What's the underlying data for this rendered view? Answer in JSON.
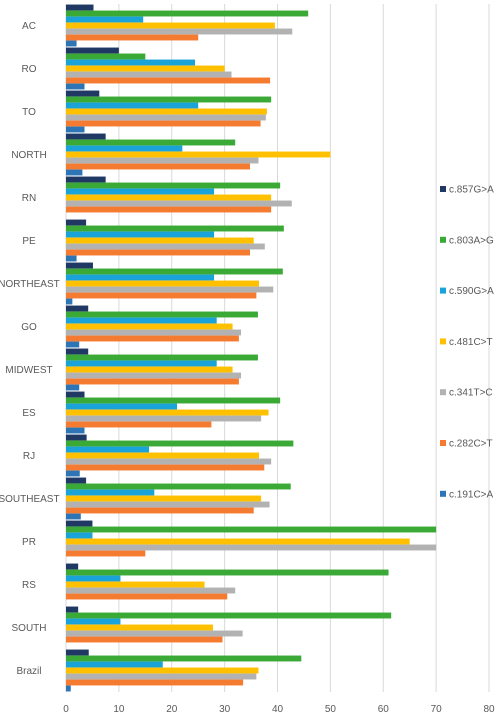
{
  "chart_data": {
    "type": "bar",
    "orientation": "horizontal",
    "categories": [
      "AC",
      "RO",
      "TO",
      "NORTH",
      "RN",
      "PE",
      "NORTHEAST",
      "GO",
      "MIDWEST",
      "ES",
      "RJ",
      "SOUTHEAST",
      "PR",
      "RS",
      "SOUTH",
      "Brazil"
    ],
    "xlim": [
      0,
      80
    ],
    "xticks": [
      "0",
      "10",
      "20",
      "30",
      "40",
      "50",
      "60",
      "70",
      "80"
    ],
    "grid": "vertical",
    "legend_position": "right",
    "series": [
      {
        "name": "c.857G>A",
        "color": "#1f3864",
        "values": [
          5.2,
          10,
          6.3,
          7.5,
          7.5,
          3.8,
          5.1,
          4.2,
          4.2,
          3.5,
          3.9,
          3.8,
          5,
          2.3,
          2.3,
          4.3
        ]
      },
      {
        "name": "c.803A>G",
        "color": "#3aa935",
        "values": [
          45.8,
          15,
          38.8,
          32,
          40.5,
          41.2,
          41,
          36.3,
          36.3,
          40.5,
          43,
          42.5,
          70,
          61,
          61.5,
          44.5
        ]
      },
      {
        "name": "c.590G>A",
        "color": "#1aa3d9",
        "values": [
          14.6,
          24.4,
          25,
          22,
          28,
          28,
          28,
          28.5,
          28.5,
          21,
          15.7,
          16.7,
          5,
          10.3,
          10.3,
          18.3
        ]
      },
      {
        "name": "c.481C>T",
        "color": "#ffc000",
        "values": [
          39.5,
          30,
          38,
          50,
          38.8,
          35.5,
          36.5,
          31.5,
          31.5,
          38.3,
          36.5,
          36.9,
          65,
          26.2,
          27.8,
          36.4
        ]
      },
      {
        "name": "c.341T>C",
        "color": "#b2b2b2",
        "values": [
          42.8,
          31.3,
          37.8,
          36.4,
          42.7,
          37.6,
          39.2,
          33.1,
          33.1,
          36.9,
          38.8,
          38.5,
          70,
          32,
          33.4,
          36
        ]
      },
      {
        "name": "c.282C>T",
        "color": "#f47b30",
        "values": [
          25,
          38.6,
          36.8,
          34.8,
          38.8,
          34.8,
          36,
          32.7,
          32.7,
          27.5,
          37.5,
          35.5,
          15,
          30.5,
          29.6,
          33.5
        ]
      },
      {
        "name": "c.191C>A",
        "color": "#2e75b6",
        "values": [
          2,
          3.5,
          3.5,
          3.1,
          0,
          2,
          1.2,
          2.5,
          2.5,
          3.5,
          2.6,
          2.8,
          0,
          0,
          0,
          0.9
        ]
      }
    ]
  }
}
